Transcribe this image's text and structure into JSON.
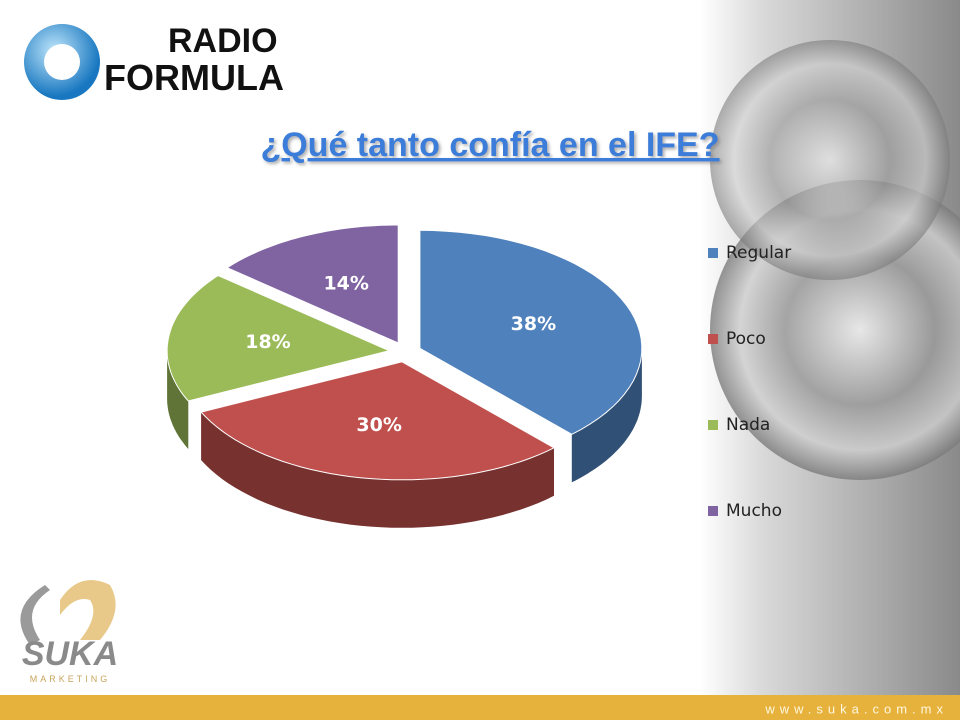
{
  "header": {
    "logo_top": "RADIO",
    "logo_bottom": "FORMULA"
  },
  "chart_data": {
    "type": "pie",
    "title": "¿Qué tanto confía en el IFE?",
    "categories": [
      "Regular",
      "Poco",
      "Nada",
      "Mucho"
    ],
    "values": [
      38,
      30,
      18,
      14
    ],
    "value_labels": [
      "38%",
      "30%",
      "18%",
      "14%"
    ],
    "colors": [
      "#4f81bd",
      "#c0504d",
      "#9bbb59",
      "#8064a2"
    ],
    "legend": "right"
  },
  "footer": {
    "brand": "SUKA",
    "tagline": "MARKETING",
    "url": "www.suka.com.mx"
  }
}
